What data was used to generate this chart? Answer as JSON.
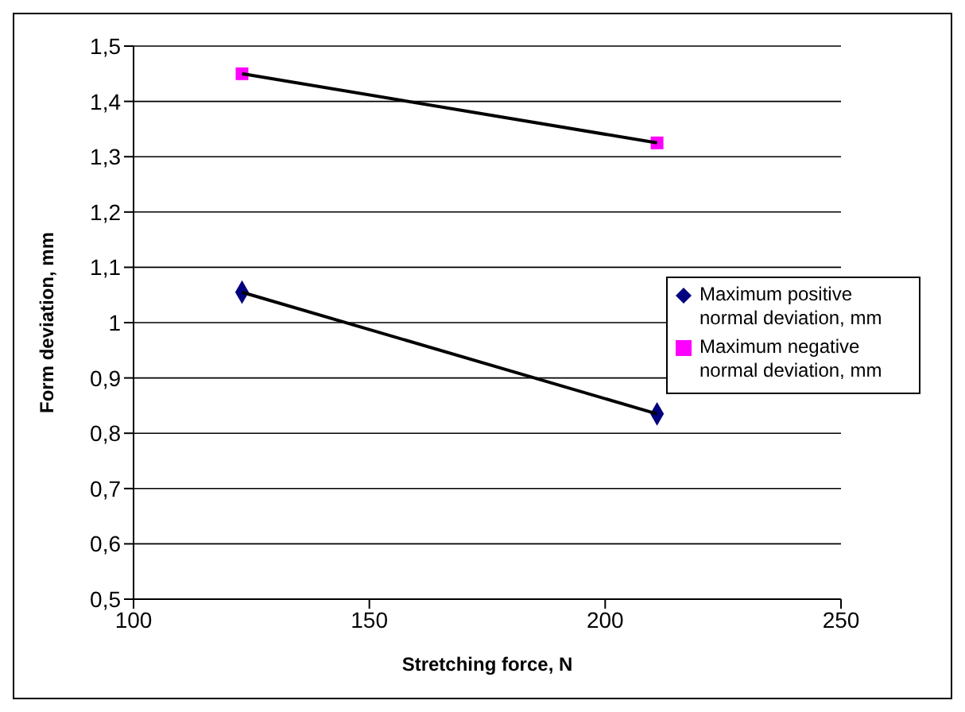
{
  "chart_data": {
    "type": "scatter",
    "xlabel": "Stretching force, N",
    "ylabel": "Form deviation, mm",
    "x": [
      123,
      211
    ],
    "series": [
      {
        "name": "Maximum positive normal deviation, mm",
        "color": "#000080",
        "marker": "diamond",
        "values": [
          1.055,
          0.835
        ]
      },
      {
        "name": "Maximum negative normal deviation, mm",
        "color": "#ff00ff",
        "marker": "square",
        "values": [
          1.45,
          1.325
        ]
      },
      {
        "type": "line",
        "color": "#000000",
        "marker": "none",
        "values": [
          1.055,
          0.835
        ]
      },
      {
        "type": "line",
        "color": "#000000",
        "marker": "none",
        "values": [
          1.45,
          1.325
        ]
      }
    ],
    "xlim": [
      100,
      250
    ],
    "xticks": [
      100,
      150,
      200,
      250
    ],
    "ylim": [
      0.5,
      1.5
    ],
    "yticks": [
      {
        "value": 0.5,
        "label": "0,5"
      },
      {
        "value": 0.6,
        "label": "0,6"
      },
      {
        "value": 0.7,
        "label": "0,7"
      },
      {
        "value": 0.8,
        "label": "0,8"
      },
      {
        "value": 0.9,
        "label": "0,9"
      },
      {
        "value": 1,
        "label": "1"
      },
      {
        "value": 1.1,
        "label": "1,1"
      },
      {
        "value": 1.2,
        "label": "1,2"
      },
      {
        "value": 1.3,
        "label": "1,3"
      },
      {
        "value": 1.4,
        "label": "1,4"
      },
      {
        "value": 1.5,
        "label": "1,5"
      }
    ],
    "grid": "y",
    "legend": "right"
  }
}
